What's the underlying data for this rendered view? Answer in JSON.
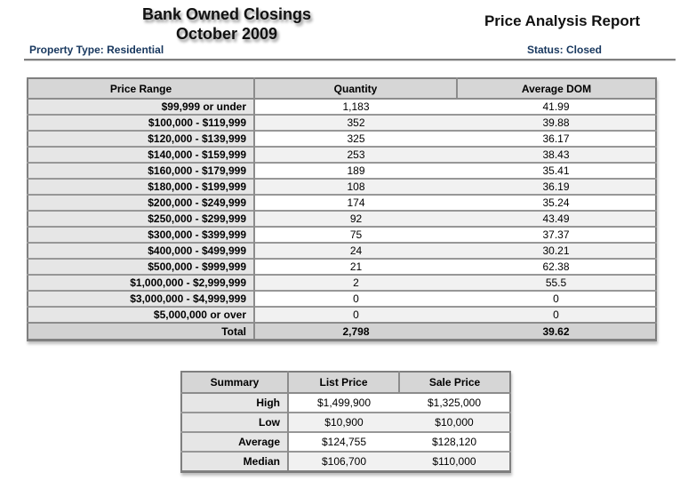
{
  "header": {
    "title_line1": "Bank Owned Closings",
    "title_line2": "October 2009",
    "report_title": "Price Analysis Report",
    "property_type_label": "Property Type: Residential",
    "status_label": "Status: Closed"
  },
  "colors": {
    "accent_navy": "#17375E",
    "table_border": "#7f7f7f",
    "header_cell_bg": "#d6d6d6",
    "label_cell_bg": "#e6e6e6",
    "stripe_bg": "#f1f1f1",
    "total_row_bg": "#d2d2d2"
  },
  "main_table": {
    "headers": [
      "Price Range",
      "Quantity",
      "Average DOM"
    ],
    "rows": [
      [
        "$99,999 or under",
        "1,183",
        "41.99"
      ],
      [
        "$100,000 - $119,999",
        "352",
        "39.88"
      ],
      [
        "$120,000 - $139,999",
        "325",
        "36.17"
      ],
      [
        "$140,000 - $159,999",
        "253",
        "38.43"
      ],
      [
        "$160,000 - $179,999",
        "189",
        "35.41"
      ],
      [
        "$180,000 - $199,999",
        "108",
        "36.19"
      ],
      [
        "$200,000 - $249,999",
        "174",
        "35.24"
      ],
      [
        "$250,000 - $299,999",
        "92",
        "43.49"
      ],
      [
        "$300,000 - $399,999",
        "75",
        "37.37"
      ],
      [
        "$400,000 - $499,999",
        "24",
        "30.21"
      ],
      [
        "$500,000 - $999,999",
        "21",
        "62.38"
      ],
      [
        "$1,000,000 - $2,999,999",
        "2",
        "55.5"
      ],
      [
        "$3,000,000 - $4,999,999",
        "0",
        "0"
      ],
      [
        "$5,000,000 or over",
        "0",
        "0"
      ]
    ],
    "total_row": [
      "Total",
      "2,798",
      "39.62"
    ]
  },
  "summary_table": {
    "headers": [
      "Summary",
      "List Price",
      "Sale Price"
    ],
    "rows": [
      [
        "High",
        "$1,499,900",
        "$1,325,000"
      ],
      [
        "Low",
        "$10,900",
        "$10,000"
      ],
      [
        "Average",
        "$124,755",
        "$128,120"
      ],
      [
        "Median",
        "$106,700",
        "$110,000"
      ]
    ]
  }
}
